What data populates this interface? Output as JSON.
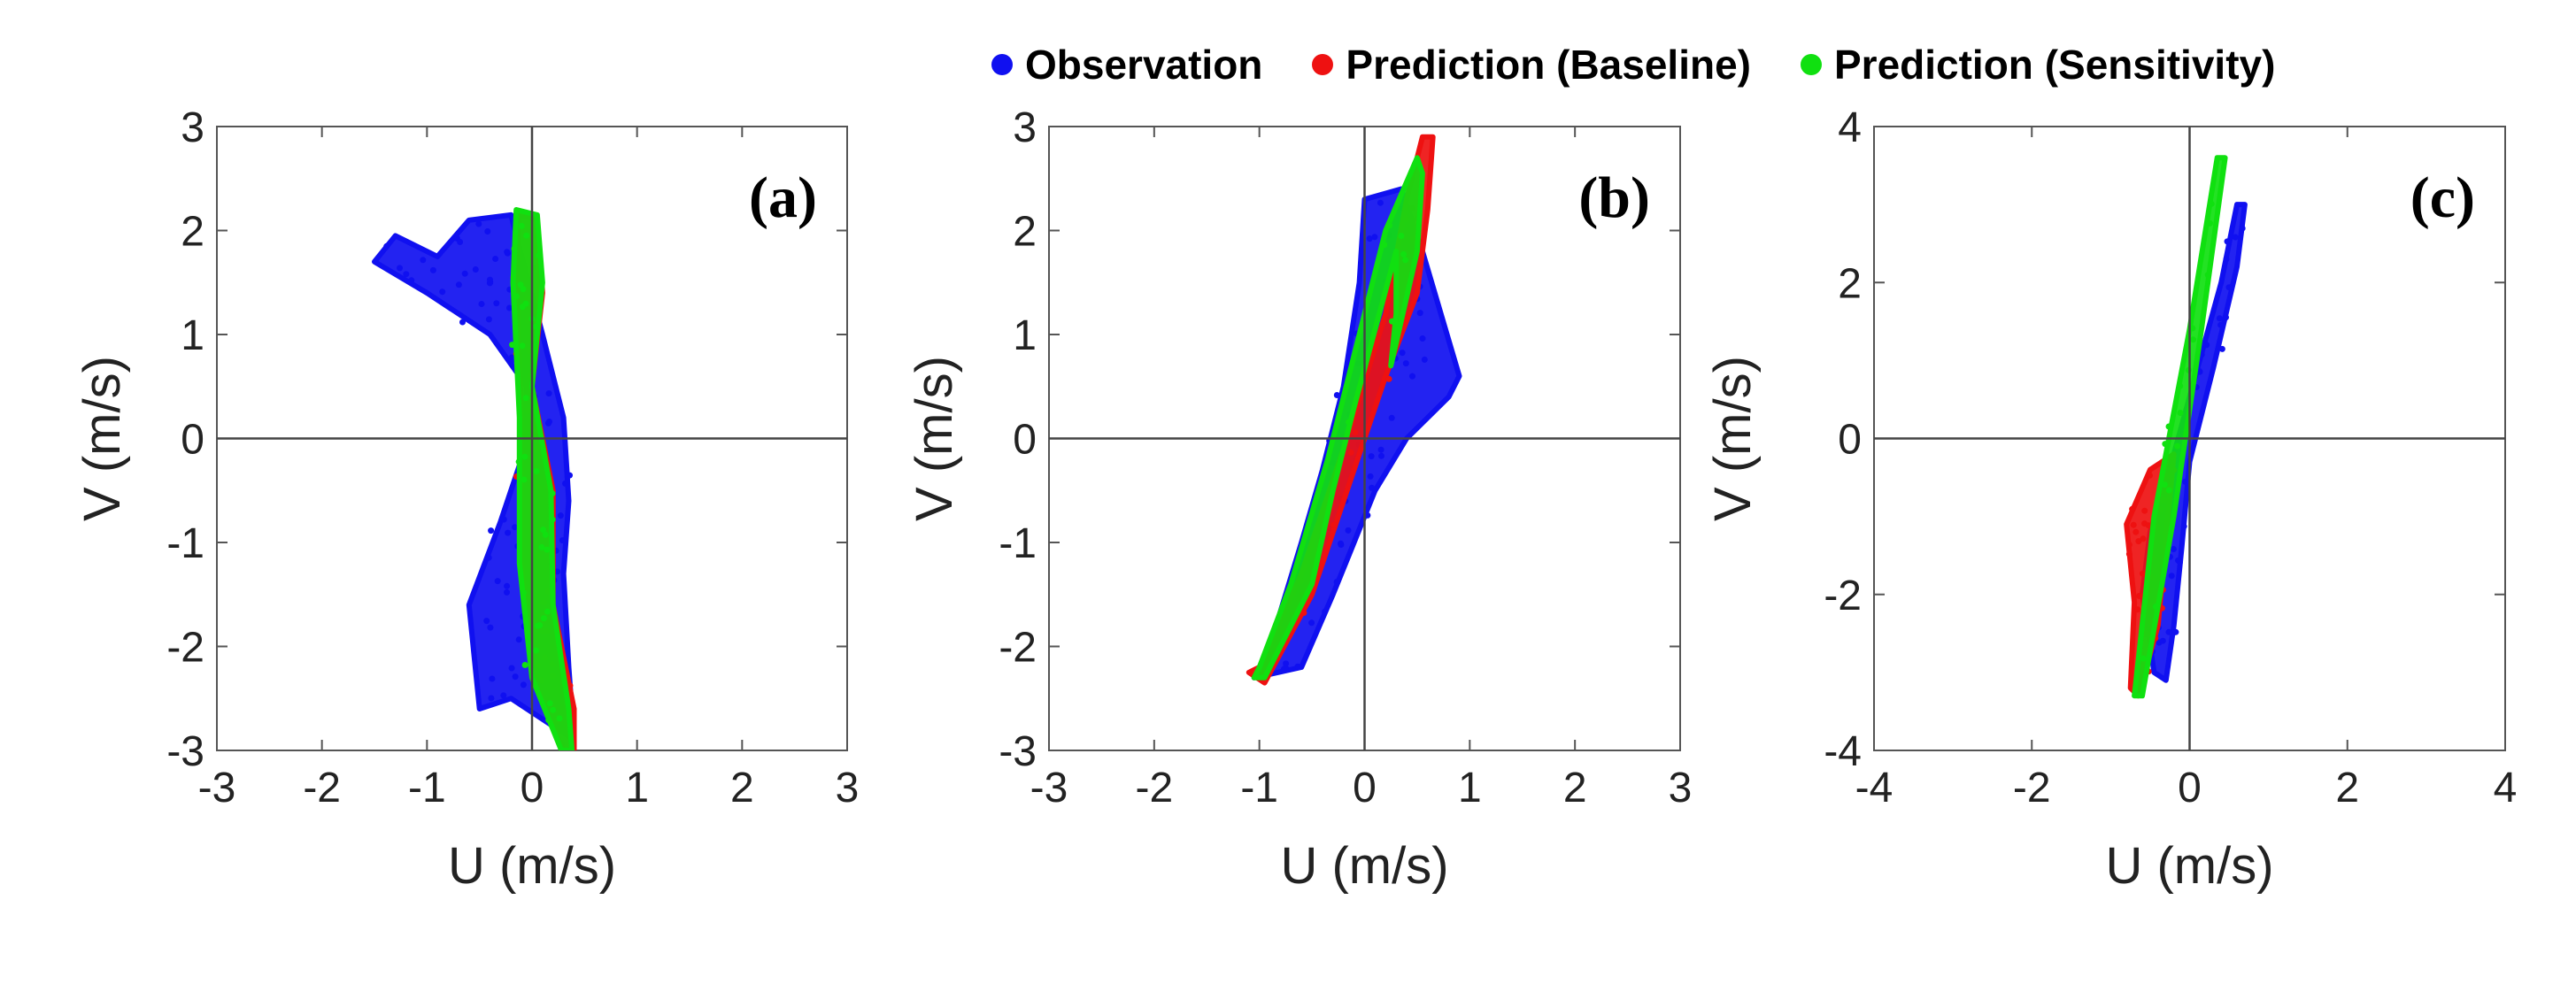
{
  "legend": [
    {
      "label": "Observation",
      "color": "#1010f0"
    },
    {
      "label": "Prediction (Baseline)",
      "color": "#ee1111"
    },
    {
      "label": "Prediction (Sensitivity)",
      "color": "#10e010"
    }
  ],
  "chart_data": [
    {
      "type": "scatter",
      "panel_label": "(a)",
      "xlabel": "U (m/s)",
      "ylabel": "V (m/s)",
      "xlim": [
        -3,
        3
      ],
      "ylim": [
        -3,
        3
      ],
      "xticks": [
        -3,
        -2,
        -1,
        0,
        1,
        2,
        3
      ],
      "yticks": [
        -3,
        -2,
        -1,
        0,
        1,
        2,
        3
      ],
      "xtick_labels": [
        "-3",
        "-2",
        "-1",
        "0",
        "1",
        "2",
        "3"
      ],
      "ytick_labels": [
        "-3",
        "-2",
        "-1",
        "0",
        "1",
        "2",
        "3"
      ],
      "series": [
        {
          "name": "Observation",
          "color": "#1010f0",
          "regions": [
            {
              "polygon": [
                [
                  -1.5,
                  1.7
                ],
                [
                  -1.3,
                  1.95
                ],
                [
                  -0.9,
                  1.75
                ],
                [
                  -0.6,
                  2.1
                ],
                [
                  -0.2,
                  2.15
                ],
                [
                  0.1,
                  1.0
                ],
                [
                  0.3,
                  0.2
                ],
                [
                  0.35,
                  -0.6
                ],
                [
                  0.3,
                  -1.3
                ],
                [
                  0.35,
                  -2.2
                ],
                [
                  0.4,
                  -2.9
                ],
                [
                  0.1,
                  -2.7
                ],
                [
                  -0.2,
                  -2.5
                ],
                [
                  -0.5,
                  -2.6
                ],
                [
                  -0.6,
                  -1.6
                ],
                [
                  -0.3,
                  -0.8
                ],
                [
                  -0.1,
                  -0.2
                ],
                [
                  -0.05,
                  0.5
                ],
                [
                  -0.4,
                  1.0
                ],
                [
                  -1.0,
                  1.4
                ]
              ]
            }
          ]
        },
        {
          "name": "Prediction (Baseline)",
          "color": "#ee1111",
          "regions": [
            {
              "polygon": [
                [
                  -0.12,
                  2.15
                ],
                [
                  0.05,
                  2.1
                ],
                [
                  0.1,
                  1.4
                ],
                [
                  0.0,
                  0.5
                ],
                [
                  0.2,
                  -0.5
                ],
                [
                  0.2,
                  -1.6
                ],
                [
                  0.4,
                  -2.6
                ],
                [
                  0.4,
                  -3.0
                ],
                [
                  0.3,
                  -3.0
                ],
                [
                  0.0,
                  -2.3
                ],
                [
                  -0.1,
                  -1.2
                ],
                [
                  -0.1,
                  0.2
                ],
                [
                  -0.15,
                  1.5
                ]
              ]
            }
          ]
        },
        {
          "name": "Prediction (Sensitivity)",
          "color": "#10e010",
          "regions": [
            {
              "polygon": [
                [
                  -0.15,
                  2.2
                ],
                [
                  0.05,
                  2.15
                ],
                [
                  0.1,
                  1.5
                ],
                [
                  0.0,
                  0.5
                ],
                [
                  0.18,
                  -0.5
                ],
                [
                  0.2,
                  -1.6
                ],
                [
                  0.35,
                  -2.6
                ],
                [
                  0.38,
                  -3.0
                ],
                [
                  0.28,
                  -3.0
                ],
                [
                  0.0,
                  -2.3
                ],
                [
                  -0.12,
                  -1.2
                ],
                [
                  -0.12,
                  0.2
                ],
                [
                  -0.18,
                  1.5
                ]
              ]
            }
          ]
        }
      ]
    },
    {
      "type": "scatter",
      "panel_label": "(b)",
      "xlabel": "U (m/s)",
      "ylabel": "V (m/s)",
      "xlim": [
        -3,
        3
      ],
      "ylim": [
        -3,
        3
      ],
      "xticks": [
        -3,
        -2,
        -1,
        0,
        1,
        2,
        3
      ],
      "yticks": [
        -3,
        -2,
        -1,
        0,
        1,
        2,
        3
      ],
      "xtick_labels": [
        "-3",
        "-2",
        "-1",
        "0",
        "1",
        "2",
        "3"
      ],
      "ytick_labels": [
        "-3",
        "-2",
        "-1",
        "0",
        "1",
        "2",
        "3"
      ],
      "series": [
        {
          "name": "Observation",
          "color": "#1010f0",
          "regions": [
            {
              "polygon": [
                [
                  -1.05,
                  -2.3
                ],
                [
                  -0.9,
                  -2.0
                ],
                [
                  -0.6,
                  -1.0
                ],
                [
                  -0.4,
                  -0.3
                ],
                [
                  -0.2,
                  0.5
                ],
                [
                  -0.05,
                  1.5
                ],
                [
                  0.0,
                  2.3
                ],
                [
                  0.35,
                  2.4
                ],
                [
                  0.55,
                  1.8
                ],
                [
                  0.9,
                  0.6
                ],
                [
                  0.8,
                  0.4
                ],
                [
                  0.4,
                  0.0
                ],
                [
                  0.1,
                  -0.5
                ],
                [
                  -0.3,
                  -1.5
                ],
                [
                  -0.6,
                  -2.2
                ]
              ]
            }
          ]
        },
        {
          "name": "Prediction (Baseline)",
          "color": "#ee1111",
          "regions": [
            {
              "polygon": [
                [
                  -1.1,
                  -2.25
                ],
                [
                  -1.0,
                  -2.2
                ],
                [
                  -0.6,
                  -1.3
                ],
                [
                  -0.2,
                  -0.1
                ],
                [
                  0.2,
                  1.2
                ],
                [
                  0.4,
                  2.3
                ],
                [
                  0.55,
                  2.9
                ],
                [
                  0.65,
                  2.9
                ],
                [
                  0.6,
                  2.2
                ],
                [
                  0.5,
                  1.4
                ],
                [
                  0.2,
                  0.6
                ],
                [
                  -0.1,
                  -0.3
                ],
                [
                  -0.5,
                  -1.5
                ],
                [
                  -0.95,
                  -2.35
                ]
              ]
            }
          ]
        },
        {
          "name": "Prediction (Sensitivity)",
          "color": "#10e010",
          "regions": [
            {
              "polygon": [
                [
                  -1.05,
                  -2.3
                ],
                [
                  -0.95,
                  -2.3
                ],
                [
                  -0.5,
                  -1.4
                ],
                [
                  -0.3,
                  -0.5
                ],
                [
                  -0.1,
                  0.3
                ],
                [
                  0.3,
                  1.8
                ],
                [
                  0.3,
                  1.2
                ],
                [
                  0.25,
                  0.7
                ],
                [
                  0.5,
                  1.8
                ],
                [
                  0.55,
                  2.55
                ],
                [
                  0.5,
                  2.7
                ],
                [
                  0.2,
                  2.0
                ],
                [
                  -0.05,
                  1.0
                ],
                [
                  -0.35,
                  -0.2
                ],
                [
                  -0.7,
                  -1.4
                ],
                [
                  -1.0,
                  -2.2
                ]
              ]
            }
          ]
        }
      ]
    },
    {
      "type": "scatter",
      "panel_label": "(c)",
      "xlabel": "U (m/s)",
      "ylabel": "V (m/s)",
      "xlim": [
        -4,
        4
      ],
      "ylim": [
        -4,
        4
      ],
      "xticks": [
        -4,
        -2,
        0,
        2,
        4
      ],
      "yticks": [
        -4,
        -2,
        0,
        2,
        4
      ],
      "xtick_labels": [
        "-4",
        "-2",
        "0",
        "2",
        "4"
      ],
      "ytick_labels": [
        "-4",
        "-2",
        "0",
        "2",
        "4"
      ],
      "series": [
        {
          "name": "Observation",
          "color": "#1010f0",
          "regions": [
            {
              "polygon": [
                [
                  -0.6,
                  -2.0
                ],
                [
                  -0.5,
                  -1.2
                ],
                [
                  -0.2,
                  -0.2
                ],
                [
                  0.1,
                  0.9
                ],
                [
                  0.4,
                  2.0
                ],
                [
                  0.6,
                  3.0
                ],
                [
                  0.7,
                  3.0
                ],
                [
                  0.6,
                  2.2
                ],
                [
                  0.3,
                  0.9
                ],
                [
                  0.0,
                  -0.3
                ],
                [
                  -0.1,
                  -1.4
                ],
                [
                  -0.2,
                  -2.4
                ],
                [
                  -0.3,
                  -3.1
                ],
                [
                  -0.45,
                  -3.0
                ]
              ]
            }
          ]
        },
        {
          "name": "Prediction (Baseline)",
          "color": "#ee1111",
          "regions": [
            {
              "polygon": [
                [
                  -0.8,
                  -1.1
                ],
                [
                  -0.5,
                  -0.4
                ],
                [
                  -0.2,
                  -0.2
                ],
                [
                  -0.3,
                  -1.3
                ],
                [
                  -0.4,
                  -2.4
                ],
                [
                  -0.65,
                  -3.3
                ],
                [
                  -0.75,
                  -3.2
                ],
                [
                  -0.7,
                  -2.1
                ]
              ]
            }
          ]
        },
        {
          "name": "Prediction (Sensitivity)",
          "color": "#10e010",
          "regions": [
            {
              "polygon": [
                [
                  -0.7,
                  -3.3
                ],
                [
                  -0.6,
                  -3.3
                ],
                [
                  -0.2,
                  -1.0
                ],
                [
                  0.15,
                  1.4
                ],
                [
                  0.45,
                  3.6
                ],
                [
                  0.35,
                  3.6
                ],
                [
                  0.0,
                  1.4
                ],
                [
                  -0.45,
                  -1.0
                ]
              ]
            }
          ]
        }
      ]
    }
  ]
}
